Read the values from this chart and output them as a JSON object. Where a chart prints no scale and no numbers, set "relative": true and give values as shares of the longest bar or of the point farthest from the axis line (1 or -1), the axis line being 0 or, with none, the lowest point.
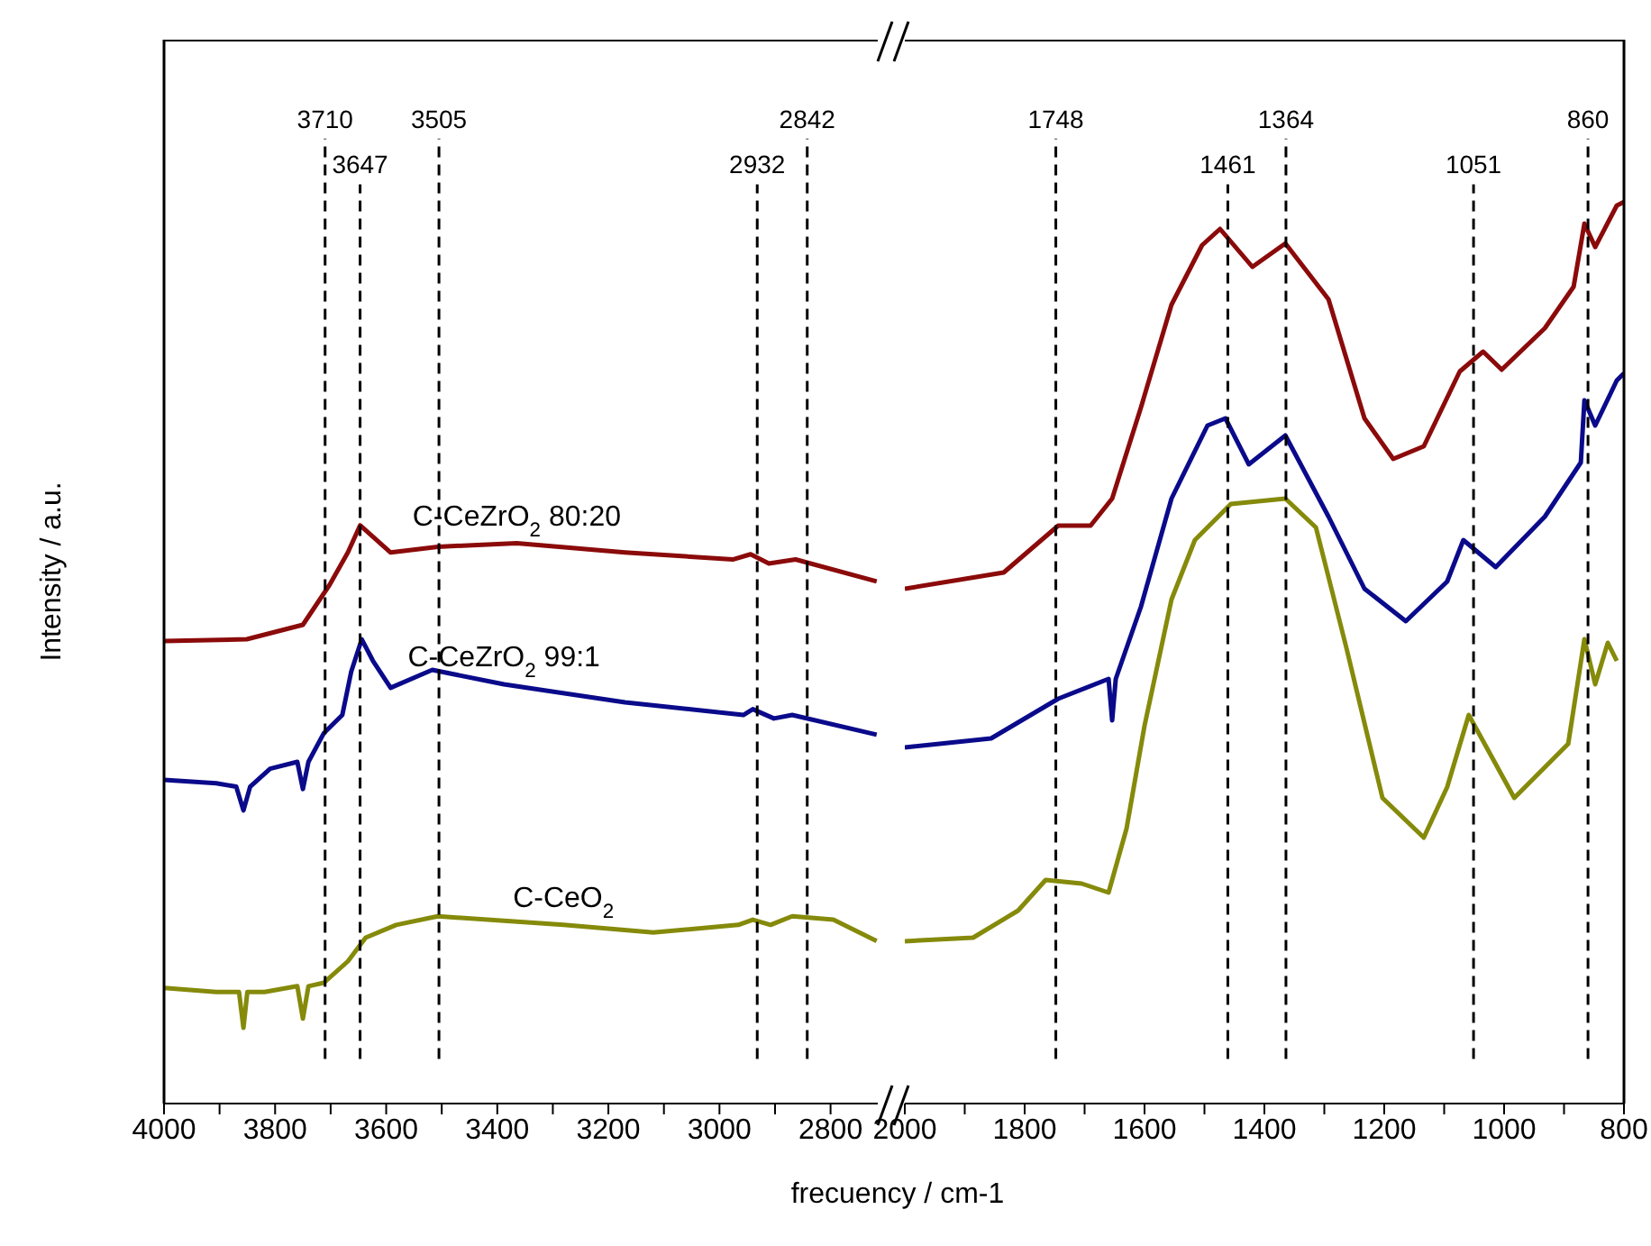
{
  "chart_data": [
    {
      "type": "line",
      "relative": true,
      "ylabel": "Intensity / a.u.",
      "xlabel": "frecuency / cm-1",
      "xlim": [
        4000,
        2715
      ],
      "xticks": [
        4000,
        {
          "value": 3900,
          "label": null
        },
        3800,
        {
          "value": 3700,
          "label": null
        },
        3600,
        {
          "value": 3500,
          "label": null
        },
        3400,
        {
          "value": 3300,
          "label": null
        },
        3200,
        {
          "value": 3100,
          "label": null
        },
        3000,
        {
          "value": 2900,
          "label": null
        },
        2800
      ],
      "series": [
        {
          "name": "C-CeZrO$_{2}$ 80:20",
          "color": "#8b0a0a",
          "x": [
            4000,
            3851,
            3750,
            3702,
            3669,
            3647,
            3592,
            3507,
            3365,
            3170,
            2976,
            2944,
            2911,
            2863,
            2717
          ],
          "values": [
            0.8,
            0.803,
            0.828,
            0.897,
            0.953,
            1.0,
            0.953,
            0.963,
            0.969,
            0.953,
            0.941,
            0.95,
            0.934,
            0.941,
            0.903
          ]
        },
        {
          "name": "C-CeZrO$_{2}$ 99:1",
          "color": "#0a0a8b",
          "x": [
            4000,
            3906,
            3870,
            3857,
            3845,
            3809,
            3760,
            3750,
            3740,
            3712,
            3679,
            3663,
            3644,
            3624,
            3592,
            3517,
            3388,
            3170,
            2957,
            2940,
            2902,
            2869,
            2717
          ],
          "values": [
            0.56,
            0.554,
            0.548,
            0.507,
            0.548,
            0.579,
            0.591,
            0.544,
            0.591,
            0.641,
            0.672,
            0.747,
            0.803,
            0.766,
            0.719,
            0.75,
            0.725,
            0.694,
            0.672,
            0.682,
            0.666,
            0.672,
            0.638
          ]
        },
        {
          "name": "C-CeO$_{2}$",
          "color": "#858a0a",
          "x": [
            4000,
            3906,
            3865,
            3857,
            3850,
            3819,
            3760,
            3750,
            3740,
            3712,
            3669,
            3637,
            3582,
            3507,
            3281,
            3119,
            2966,
            2940,
            2908,
            2869,
            2795,
            2717
          ],
          "values": [
            0.2,
            0.193,
            0.193,
            0.131,
            0.193,
            0.193,
            0.203,
            0.147,
            0.203,
            0.209,
            0.246,
            0.287,
            0.309,
            0.324,
            0.309,
            0.296,
            0.309,
            0.318,
            0.309,
            0.324,
            0.318,
            0.281
          ]
        }
      ],
      "ref_lines": [
        {
          "axis": "x",
          "value": 3710,
          "label": "3710",
          "line_style": "dashed"
        },
        {
          "axis": "x",
          "value": 3647,
          "label": "3647",
          "line_style": "dashed"
        },
        {
          "axis": "x",
          "value": 3505,
          "label": "3505",
          "line_style": "dashed"
        },
        {
          "axis": "x",
          "value": 2932,
          "label": "2932",
          "line_style": "dashed"
        },
        {
          "axis": "x",
          "value": 2842,
          "label": "2842",
          "line_style": "dashed"
        }
      ]
    },
    {
      "type": "line",
      "relative": true,
      "xlim": [
        2000,
        800
      ],
      "xticks": [
        2000,
        {
          "value": 1900,
          "label": null
        },
        1800,
        {
          "value": 1700,
          "label": null
        },
        1600,
        {
          "value": 1500,
          "label": null
        },
        1400,
        {
          "value": 1300,
          "label": null
        },
        1200,
        {
          "value": 1100,
          "label": null
        },
        1000,
        {
          "value": 900,
          "label": null
        },
        800
      ],
      "series": [
        {
          "color": "#8b0a0a",
          "x": [
            2000,
            1835,
            1744,
            1690,
            1654,
            1606,
            1555,
            1504,
            1474,
            1420,
            1365,
            1293,
            1233,
            1185,
            1134,
            1074,
            1035,
            1004,
            932,
            884,
            866,
            848,
            812,
            800
          ],
          "values": [
            0.571,
            0.589,
            0.641,
            0.641,
            0.671,
            0.772,
            0.886,
            0.952,
            0.97,
            0.928,
            0.954,
            0.892,
            0.76,
            0.715,
            0.729,
            0.812,
            0.834,
            0.814,
            0.86,
            0.906,
            0.976,
            0.95,
            0.996,
            1.0
          ]
        },
        {
          "color": "#0a0a8b",
          "x": [
            2000,
            1856,
            1744,
            1660,
            1654,
            1648,
            1606,
            1555,
            1495,
            1465,
            1426,
            1365,
            1293,
            1233,
            1164,
            1095,
            1068,
            1014,
            932,
            872,
            866,
            848,
            812,
            800
          ],
          "values": [
            0.395,
            0.405,
            0.449,
            0.471,
            0.425,
            0.471,
            0.551,
            0.671,
            0.752,
            0.76,
            0.709,
            0.741,
            0.651,
            0.571,
            0.535,
            0.579,
            0.625,
            0.595,
            0.651,
            0.711,
            0.78,
            0.752,
            0.802,
            0.81
          ]
        },
        {
          "color": "#858a0a",
          "x": [
            2000,
            1886,
            1811,
            1765,
            1705,
            1660,
            1630,
            1600,
            1555,
            1516,
            1456,
            1365,
            1314,
            1263,
            1203,
            1134,
            1095,
            1059,
            983,
            893,
            866,
            848,
            827,
            812
          ],
          "values": [
            0.18,
            0.184,
            0.214,
            0.248,
            0.244,
            0.234,
            0.305,
            0.419,
            0.559,
            0.625,
            0.665,
            0.671,
            0.639,
            0.505,
            0.339,
            0.295,
            0.351,
            0.431,
            0.339,
            0.399,
            0.515,
            0.465,
            0.511,
            0.491
          ]
        }
      ],
      "ref_lines": [
        {
          "axis": "x",
          "value": 1748,
          "label": "1748",
          "line_style": "dashed"
        },
        {
          "axis": "x",
          "value": 1461,
          "label": "1461",
          "line_style": "dashed"
        },
        {
          "axis": "x",
          "value": 1364,
          "label": "1364",
          "line_style": "dashed"
        },
        {
          "axis": "x",
          "value": 1051,
          "label": "1051",
          "line_style": "dashed"
        },
        {
          "axis": "x",
          "value": 860,
          "label": "860",
          "line_style": "dashed"
        }
      ]
    }
  ]
}
